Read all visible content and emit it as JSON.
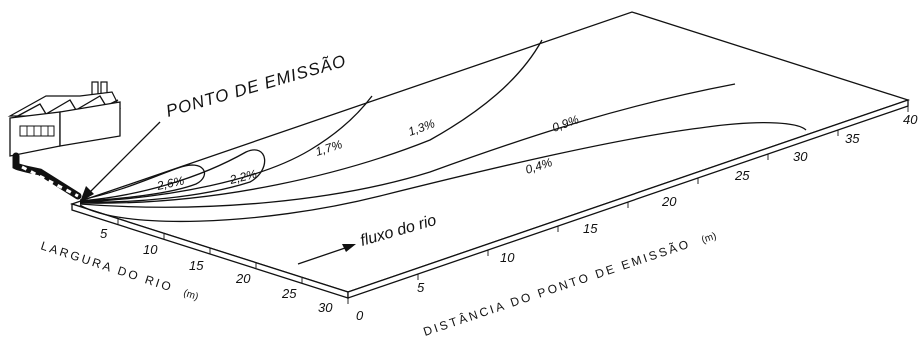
{
  "title": "PONTO DE EMISSÃO",
  "flow_label": "fluxo do rio",
  "width_axis": {
    "label": "LARGURA DO RIO",
    "unit": "(m)",
    "ticks": [
      "5",
      "10",
      "15",
      "20",
      "25",
      "30"
    ]
  },
  "distance_axis": {
    "label": "DISTÂNCIA DO PONTO DE EMISSÃO",
    "unit": "(m)",
    "ticks": [
      "0",
      "5",
      "10",
      "15",
      "20",
      "25",
      "30",
      "35",
      "40"
    ]
  },
  "contours": [
    {
      "label": "2,6%"
    },
    {
      "label": "2,2%"
    },
    {
      "label": "1,7%"
    },
    {
      "label": "1,3%"
    },
    {
      "label": "0,9%"
    },
    {
      "label": "0,4%"
    }
  ],
  "colors": {
    "ink": "#111111",
    "background": "#ffffff"
  },
  "icons": [
    "factory-icon",
    "pipe-icon",
    "arrow-icon"
  ]
}
